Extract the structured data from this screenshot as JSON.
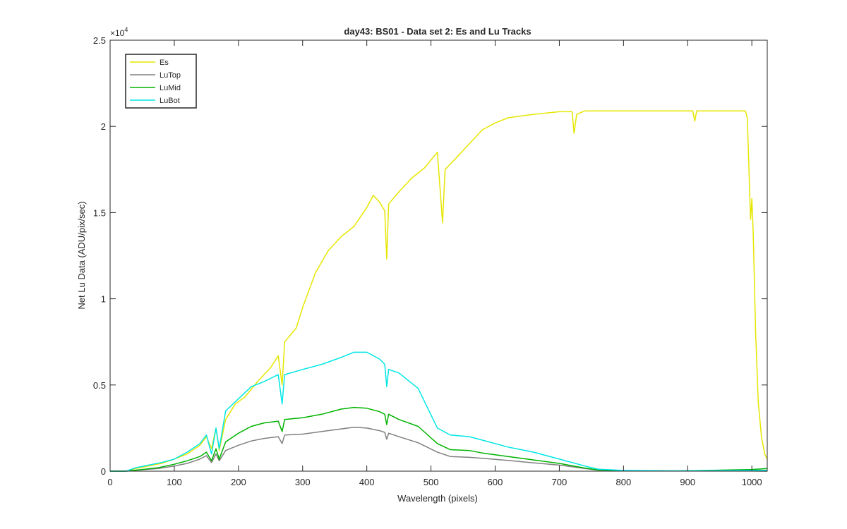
{
  "chart_data": {
    "type": "line",
    "title": "day43: BS01 - Data set 2: Es and Lu Tracks",
    "xlabel": "Wavelength (pixels)",
    "ylabel": "Net Lu Data (ADU/pix/sec)",
    "xlim": [
      0,
      1024
    ],
    "ylim": [
      0,
      25000
    ],
    "xticks": [
      0,
      100,
      200,
      300,
      400,
      500,
      600,
      700,
      800,
      900,
      1000
    ],
    "xtick_labels": [
      "0",
      "100",
      "200",
      "300",
      "400",
      "500",
      "600",
      "700",
      "800",
      "900",
      "1000"
    ],
    "yticks": [
      0,
      5000,
      10000,
      15000,
      20000,
      25000
    ],
    "ytick_labels": [
      "0",
      "0.5",
      "1",
      "1.5",
      "2",
      "2.5"
    ],
    "y_exponent_label": "×10",
    "y_exponent_power": "4",
    "grid": false,
    "legend_position": "top-left",
    "series": [
      {
        "name": "Es",
        "color": "#e6e600",
        "points": [
          [
            0,
            0
          ],
          [
            25,
            0
          ],
          [
            40,
            150
          ],
          [
            60,
            300
          ],
          [
            80,
            450
          ],
          [
            100,
            700
          ],
          [
            120,
            1000
          ],
          [
            140,
            1500
          ],
          [
            150,
            2000
          ],
          [
            158,
            1300
          ],
          [
            165,
            2500
          ],
          [
            170,
            1200
          ],
          [
            180,
            3000
          ],
          [
            195,
            3900
          ],
          [
            210,
            4300
          ],
          [
            230,
            5200
          ],
          [
            250,
            6000
          ],
          [
            262,
            6700
          ],
          [
            268,
            5000
          ],
          [
            272,
            7500
          ],
          [
            290,
            8300
          ],
          [
            300,
            9500
          ],
          [
            320,
            11500
          ],
          [
            340,
            12800
          ],
          [
            360,
            13600
          ],
          [
            380,
            14200
          ],
          [
            400,
            15300
          ],
          [
            410,
            16000
          ],
          [
            420,
            15600
          ],
          [
            428,
            15100
          ],
          [
            431,
            12300
          ],
          [
            434,
            15500
          ],
          [
            450,
            16200
          ],
          [
            470,
            17000
          ],
          [
            490,
            17600
          ],
          [
            510,
            18500
          ],
          [
            518,
            14400
          ],
          [
            522,
            17500
          ],
          [
            540,
            18200
          ],
          [
            560,
            19000
          ],
          [
            580,
            19800
          ],
          [
            600,
            20200
          ],
          [
            620,
            20500
          ],
          [
            640,
            20600
          ],
          [
            660,
            20700
          ],
          [
            700,
            20850
          ],
          [
            720,
            20850
          ],
          [
            723,
            19600
          ],
          [
            727,
            20700
          ],
          [
            740,
            20900
          ],
          [
            800,
            20900
          ],
          [
            880,
            20900
          ],
          [
            908,
            20900
          ],
          [
            911,
            20300
          ],
          [
            914,
            20900
          ],
          [
            960,
            20900
          ],
          [
            990,
            20900
          ],
          [
            993,
            20500
          ],
          [
            996,
            17000
          ],
          [
            998,
            14600
          ],
          [
            1000,
            15800
          ],
          [
            1002,
            14000
          ],
          [
            1006,
            8000
          ],
          [
            1010,
            4000
          ],
          [
            1015,
            2000
          ],
          [
            1020,
            1000
          ],
          [
            1024,
            700
          ]
        ]
      },
      {
        "name": "LuTop",
        "color": "#808080",
        "points": [
          [
            0,
            0
          ],
          [
            25,
            0
          ],
          [
            50,
            80
          ],
          [
            75,
            150
          ],
          [
            100,
            300
          ],
          [
            120,
            450
          ],
          [
            140,
            700
          ],
          [
            150,
            900
          ],
          [
            158,
            500
          ],
          [
            165,
            1000
          ],
          [
            170,
            600
          ],
          [
            180,
            1200
          ],
          [
            200,
            1500
          ],
          [
            220,
            1750
          ],
          [
            240,
            1900
          ],
          [
            262,
            2000
          ],
          [
            268,
            1600
          ],
          [
            272,
            2100
          ],
          [
            300,
            2150
          ],
          [
            330,
            2300
          ],
          [
            360,
            2450
          ],
          [
            380,
            2550
          ],
          [
            400,
            2500
          ],
          [
            420,
            2350
          ],
          [
            428,
            2250
          ],
          [
            431,
            1850
          ],
          [
            434,
            2200
          ],
          [
            450,
            2000
          ],
          [
            480,
            1650
          ],
          [
            510,
            1100
          ],
          [
            530,
            850
          ],
          [
            560,
            800
          ],
          [
            580,
            750
          ],
          [
            620,
            620
          ],
          [
            660,
            480
          ],
          [
            700,
            350
          ],
          [
            740,
            150
          ],
          [
            760,
            60
          ],
          [
            800,
            20
          ],
          [
            880,
            10
          ],
          [
            1000,
            10
          ],
          [
            1024,
            0
          ]
        ]
      },
      {
        "name": "LuMid",
        "color": "#00b300",
        "points": [
          [
            0,
            0
          ],
          [
            25,
            0
          ],
          [
            50,
            100
          ],
          [
            75,
            200
          ],
          [
            100,
            400
          ],
          [
            120,
            600
          ],
          [
            140,
            850
          ],
          [
            150,
            1100
          ],
          [
            158,
            600
          ],
          [
            165,
            1300
          ],
          [
            170,
            700
          ],
          [
            180,
            1700
          ],
          [
            200,
            2200
          ],
          [
            220,
            2600
          ],
          [
            240,
            2800
          ],
          [
            262,
            2900
          ],
          [
            268,
            2300
          ],
          [
            272,
            3000
          ],
          [
            300,
            3100
          ],
          [
            330,
            3300
          ],
          [
            360,
            3600
          ],
          [
            380,
            3700
          ],
          [
            400,
            3650
          ],
          [
            420,
            3450
          ],
          [
            428,
            3300
          ],
          [
            431,
            2700
          ],
          [
            434,
            3300
          ],
          [
            450,
            3000
          ],
          [
            480,
            2600
          ],
          [
            510,
            1600
          ],
          [
            530,
            1250
          ],
          [
            560,
            1200
          ],
          [
            580,
            1050
          ],
          [
            620,
            850
          ],
          [
            660,
            650
          ],
          [
            700,
            450
          ],
          [
            740,
            180
          ],
          [
            760,
            70
          ],
          [
            800,
            20
          ],
          [
            880,
            10
          ],
          [
            1000,
            100
          ],
          [
            1024,
            150
          ]
        ]
      },
      {
        "name": "LuBot",
        "color": "#00e6e6",
        "points": [
          [
            0,
            0
          ],
          [
            25,
            0
          ],
          [
            40,
            200
          ],
          [
            60,
            350
          ],
          [
            80,
            500
          ],
          [
            100,
            700
          ],
          [
            120,
            1100
          ],
          [
            140,
            1600
          ],
          [
            150,
            2100
          ],
          [
            158,
            1000
          ],
          [
            165,
            2500
          ],
          [
            170,
            1300
          ],
          [
            180,
            3500
          ],
          [
            200,
            4200
          ],
          [
            220,
            4900
          ],
          [
            240,
            5200
          ],
          [
            262,
            5600
          ],
          [
            268,
            3900
          ],
          [
            272,
            5600
          ],
          [
            300,
            5900
          ],
          [
            330,
            6200
          ],
          [
            360,
            6600
          ],
          [
            380,
            6900
          ],
          [
            400,
            6900
          ],
          [
            420,
            6500
          ],
          [
            428,
            6200
          ],
          [
            431,
            4900
          ],
          [
            434,
            5900
          ],
          [
            450,
            5700
          ],
          [
            480,
            4800
          ],
          [
            510,
            2500
          ],
          [
            530,
            2100
          ],
          [
            560,
            2000
          ],
          [
            580,
            1800
          ],
          [
            620,
            1400
          ],
          [
            660,
            1100
          ],
          [
            700,
            700
          ],
          [
            740,
            300
          ],
          [
            760,
            120
          ],
          [
            800,
            40
          ],
          [
            880,
            20
          ],
          [
            1000,
            50
          ],
          [
            1024,
            50
          ]
        ]
      }
    ]
  }
}
